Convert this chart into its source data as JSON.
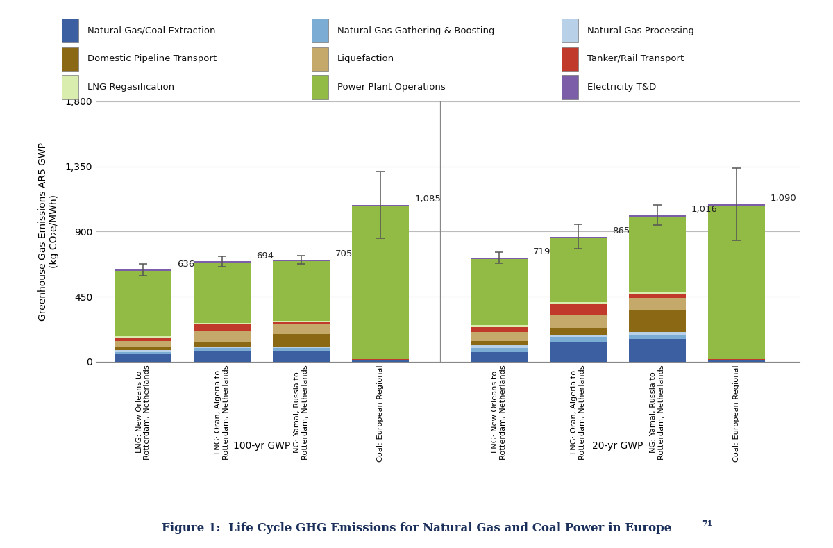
{
  "categories": [
    "LNG: New Orleans to\nRotterdam, Netherlands",
    "LNG: Oran, Algeria to\nRotterdam, Netherlands",
    "NG: Yamal, Russia to\nRotterdam, Netherlands",
    "Coal: European Regional",
    "LNG: New Orleans to\nRotterdam, Netherlands",
    "LNG: Oran, Algeria to\nRotterdam, Netherlands",
    "NG: Yamal, Russia to\nRotterdam, Netherlands",
    "Coal: European Regional"
  ],
  "group_labels": [
    "100-yr GWP",
    "20-yr GWP"
  ],
  "legend_labels": [
    "Natural Gas/Coal Extraction",
    "Natural Gas Gathering & Boosting",
    "Natural Gas Processing",
    "Domestic Pipeline Transport",
    "Liquefaction",
    "Tanker/Rail Transport",
    "LNG Regasification",
    "Power Plant Operations",
    "Electricity T&D"
  ],
  "colors": [
    "#3B5FA0",
    "#7BADD4",
    "#B8D0E8",
    "#8B6914",
    "#C4A96A",
    "#C0392B",
    "#D8EDAE",
    "#92BB45",
    "#7B5EA7"
  ],
  "bar_data": [
    [
      50,
      18,
      10,
      20,
      45,
      25,
      8,
      450,
      10
    ],
    [
      75,
      18,
      10,
      35,
      70,
      50,
      8,
      420,
      8
    ],
    [
      75,
      18,
      10,
      90,
      65,
      15,
      8,
      415,
      9
    ],
    [
      8,
      0,
      0,
      2,
      0,
      8,
      0,
      1055,
      12
    ],
    [
      65,
      30,
      18,
      28,
      65,
      35,
      10,
      460,
      8
    ],
    [
      140,
      30,
      18,
      48,
      85,
      80,
      10,
      445,
      9
    ],
    [
      155,
      30,
      18,
      155,
      85,
      25,
      10,
      525,
      13
    ],
    [
      8,
      0,
      0,
      2,
      0,
      8,
      0,
      1060,
      12
    ]
  ],
  "totals": [
    636,
    694,
    705,
    1085,
    719,
    865,
    1016,
    1090
  ],
  "error_bars": [
    40,
    35,
    30,
    230,
    40,
    85,
    70,
    250
  ],
  "ylabel": "Greenhouse Gas Emissions AR5 GWP\n(kg CO₂e/MWh)",
  "ylim": [
    0,
    1800
  ],
  "yticks": [
    0,
    450,
    900,
    1350,
    1800
  ],
  "ytick_labels": [
    "0",
    "450",
    "900",
    "1,350",
    "1,800"
  ],
  "figure_caption": "Figure 1:  Life Cycle GHG Emissions for Natural Gas and Coal Power in Europe",
  "superscript": "71",
  "background_color": "#FFFFFF"
}
